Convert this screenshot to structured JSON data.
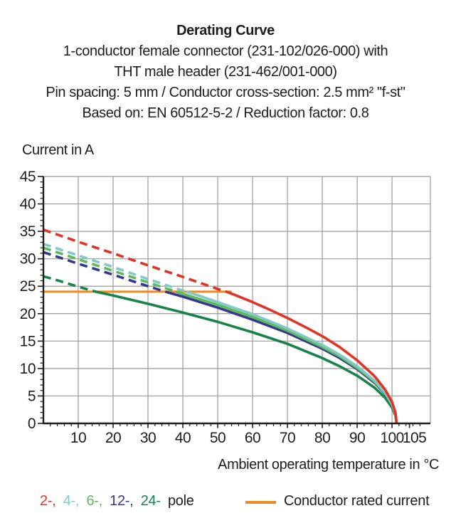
{
  "header": {
    "title": "Derating Curve",
    "line2": "1-conductor female connector (231-102/026-000) with",
    "line3": "THT male header (231-462/001-000)",
    "line4": "Pin spacing: 5 mm / Conductor cross-section: 2.5 mm² \"f-st\"",
    "line5": "Based on: EN 60512-5-2 / Reduction factor: 0.8"
  },
  "legend": {
    "poles": [
      {
        "label": "2-,",
        "color": "#e23327"
      },
      {
        "label": "4-,",
        "color": "#82c9c6"
      },
      {
        "label": "6-,",
        "color": "#5dba5a"
      },
      {
        "label": "12-,",
        "color": "#36378f"
      },
      {
        "label": "24-",
        "color": "#17824a"
      }
    ],
    "pole_word": "pole",
    "rated_label": "Conductor rated current"
  },
  "chart_data": {
    "type": "line",
    "title": "Derating Curve",
    "xlabel": "Ambient operating temperature in °C",
    "ylabel": "Current in A",
    "xlim": [
      0,
      111
    ],
    "ylim": [
      0,
      45
    ],
    "x_ticks_major": [
      10,
      20,
      30,
      40,
      50,
      60,
      70,
      80,
      90,
      100,
      105
    ],
    "x_minor_step": 2,
    "y_ticks": [
      0,
      5,
      10,
      15,
      20,
      25,
      30,
      35,
      40,
      45
    ],
    "y_minor_step": 1,
    "grid_color": "#9a9a9a",
    "axis_color": "#1d1d1b",
    "rated_current": {
      "label": "Conductor rated current",
      "value": 24,
      "x_end": 54,
      "color": "#ec8a25"
    },
    "dash_note": "dashed segments = current above conductor rated current (24 A)",
    "series": [
      {
        "name": "24-pole",
        "color": "#17824a",
        "solid_from": 15,
        "points": [
          [
            0,
            26.8
          ],
          [
            5,
            25.9
          ],
          [
            10,
            24.9
          ],
          [
            15,
            24
          ],
          [
            20,
            23.3
          ],
          [
            30,
            21.8
          ],
          [
            40,
            20.2
          ],
          [
            50,
            18.5
          ],
          [
            60,
            16.6
          ],
          [
            70,
            14.5
          ],
          [
            80,
            11.9
          ],
          [
            85,
            10.4
          ],
          [
            90,
            8.7
          ],
          [
            95,
            6.5
          ],
          [
            98,
            4.7
          ],
          [
            100,
            2.9
          ],
          [
            101,
            1.4
          ],
          [
            101.3,
            0
          ]
        ]
      },
      {
        "name": "12-pole",
        "color": "#36378f",
        "solid_from": 35,
        "points": [
          [
            0,
            31.2
          ],
          [
            10,
            29.1
          ],
          [
            20,
            27.1
          ],
          [
            30,
            25
          ],
          [
            35,
            24
          ],
          [
            40,
            23.1
          ],
          [
            50,
            21.1
          ],
          [
            60,
            18.9
          ],
          [
            70,
            16.5
          ],
          [
            80,
            13.6
          ],
          [
            85,
            11.9
          ],
          [
            90,
            9.9
          ],
          [
            95,
            7.4
          ],
          [
            98,
            5.4
          ],
          [
            100,
            3.4
          ],
          [
            101,
            1.6
          ],
          [
            101.3,
            0
          ]
        ]
      },
      {
        "name": "6-pole",
        "color": "#5dba5a",
        "solid_from": 38,
        "points": [
          [
            0,
            32
          ],
          [
            10,
            29.9
          ],
          [
            20,
            27.8
          ],
          [
            30,
            25.7
          ],
          [
            38,
            24
          ],
          [
            40,
            23.6
          ],
          [
            50,
            21.6
          ],
          [
            60,
            19.4
          ],
          [
            70,
            16.9
          ],
          [
            80,
            13.9
          ],
          [
            85,
            12.2
          ],
          [
            90,
            10.1
          ],
          [
            95,
            7.6
          ],
          [
            98,
            5.5
          ],
          [
            100,
            3.4
          ],
          [
            101,
            1.7
          ],
          [
            101.3,
            0
          ]
        ]
      },
      {
        "name": "4-pole",
        "color": "#82c9c6",
        "solid_from": 41,
        "points": [
          [
            0,
            32.7
          ],
          [
            10,
            30.6
          ],
          [
            20,
            28.5
          ],
          [
            30,
            26.3
          ],
          [
            40,
            24.2
          ],
          [
            41,
            24
          ],
          [
            45,
            23.2
          ],
          [
            50,
            22.1
          ],
          [
            55,
            21
          ],
          [
            60,
            19.9
          ],
          [
            65,
            18.6
          ],
          [
            70,
            17.3
          ],
          [
            75,
            15.8
          ],
          [
            80,
            14.3
          ],
          [
            85,
            12.5
          ],
          [
            90,
            10.4
          ],
          [
            95,
            7.8
          ],
          [
            98,
            5.6
          ],
          [
            100,
            3.5
          ],
          [
            101,
            1.7
          ],
          [
            101.3,
            0
          ]
        ]
      },
      {
        "name": "2-pole",
        "color": "#e23327",
        "solid_from": 52.5,
        "points": [
          [
            0,
            35.3
          ],
          [
            10,
            33.1
          ],
          [
            20,
            31
          ],
          [
            30,
            28.8
          ],
          [
            40,
            26.7
          ],
          [
            50,
            24.5
          ],
          [
            52.5,
            24
          ],
          [
            55,
            23.4
          ],
          [
            60,
            22.1
          ],
          [
            65,
            20.7
          ],
          [
            70,
            19.2
          ],
          [
            75,
            17.6
          ],
          [
            80,
            15.9
          ],
          [
            85,
            13.9
          ],
          [
            90,
            11.5
          ],
          [
            95,
            8.6
          ],
          [
            98,
            6.2
          ],
          [
            100,
            3.9
          ],
          [
            101,
            1.9
          ],
          [
            101.3,
            0
          ]
        ]
      }
    ]
  }
}
